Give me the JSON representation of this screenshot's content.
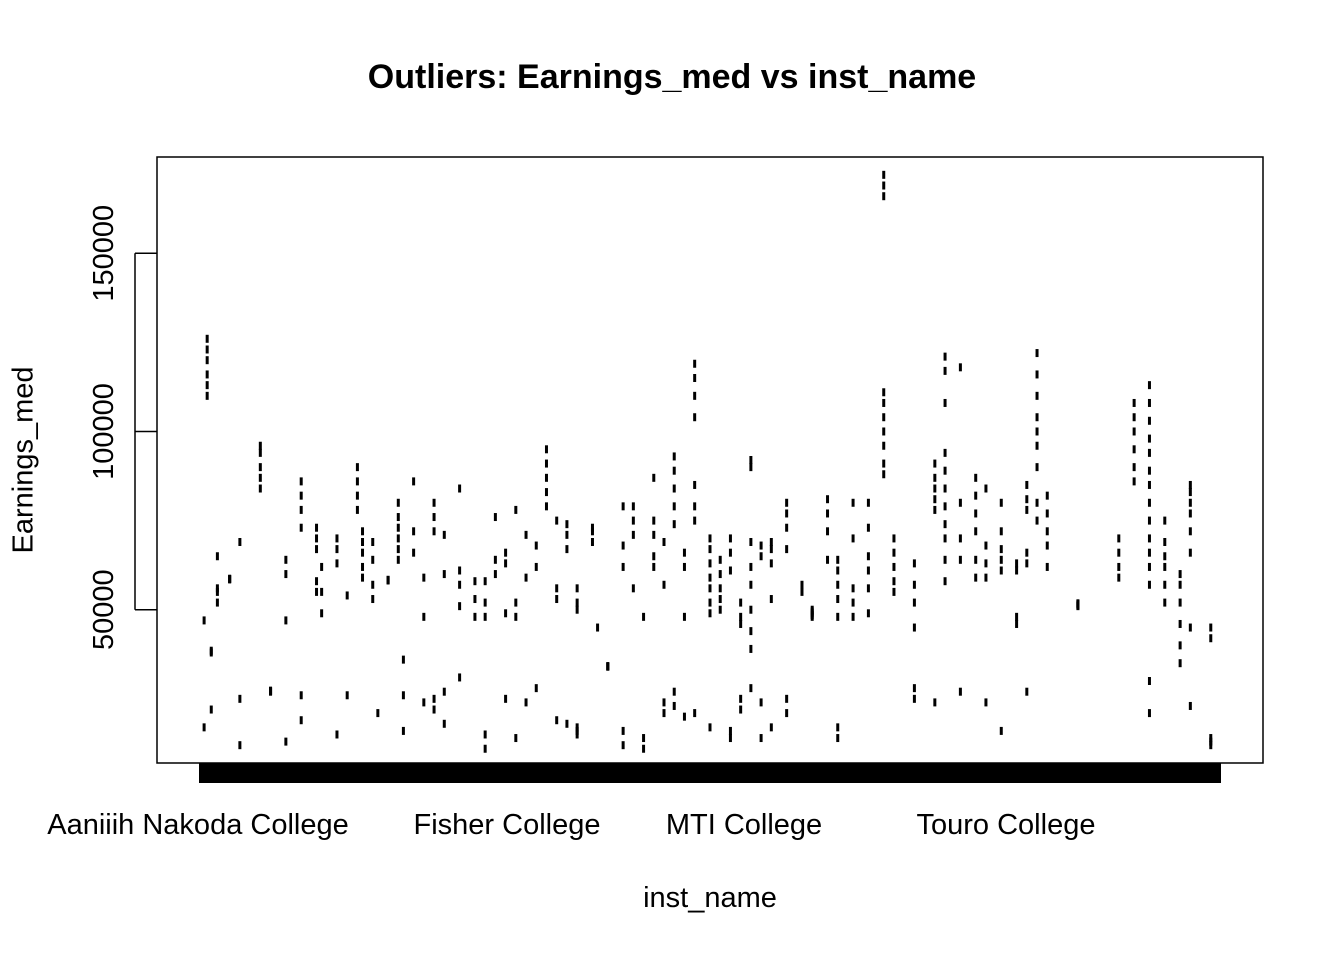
{
  "chart_data": {
    "type": "box",
    "title": "Outliers: Earnings_med vs inst_name",
    "xlabel": "inst_name",
    "ylabel": "Earnings_med",
    "ylim": [
      7000,
      177000
    ],
    "y_ticks": [
      50000,
      100000,
      150000
    ],
    "x_tick_labels": [
      "Aaniiih Nakoda College",
      "Fisher College",
      "MTI College",
      "Touro College"
    ],
    "n_categories": 1000,
    "grid": false,
    "legend": "none",
    "colors": {
      "ink": "#000000",
      "background": "#ffffff"
    },
    "outlier_clusters": [
      {
        "x": 0.005,
        "values": [
          47000,
          17000
        ]
      },
      {
        "x": 0.008,
        "values": [
          110000,
          113000,
          116000,
          120000,
          123000,
          126000
        ]
      },
      {
        "x": 0.012,
        "values": [
          38000,
          38500,
          22000
        ]
      },
      {
        "x": 0.018,
        "values": [
          52000,
          55000,
          65000,
          56000
        ]
      },
      {
        "x": 0.03,
        "values": [
          58500,
          58600,
          58700
        ]
      },
      {
        "x": 0.04,
        "values": [
          69000,
          25000,
          12000
        ]
      },
      {
        "x": 0.06,
        "values": [
          84000,
          87000,
          90000,
          94000,
          96000
        ]
      },
      {
        "x": 0.07,
        "values": [
          27000,
          27100,
          27200,
          27300
        ]
      },
      {
        "x": 0.085,
        "values": [
          64000,
          60000,
          47000,
          13000
        ]
      },
      {
        "x": 0.1,
        "values": [
          73000,
          78000,
          82000,
          86000,
          26000,
          19000
        ]
      },
      {
        "x": 0.115,
        "values": [
          67000,
          70000,
          73000,
          58000,
          55000
        ]
      },
      {
        "x": 0.12,
        "values": [
          62000,
          55000,
          49000
        ]
      },
      {
        "x": 0.135,
        "values": [
          63000,
          67000,
          70000,
          15000
        ]
      },
      {
        "x": 0.145,
        "values": [
          54000,
          26000
        ]
      },
      {
        "x": 0.155,
        "values": [
          78000,
          82000,
          86000,
          90000
        ]
      },
      {
        "x": 0.16,
        "values": [
          59000,
          62000,
          66000,
          69000,
          72000
        ]
      },
      {
        "x": 0.17,
        "values": [
          53000,
          57000,
          64000,
          69000
        ]
      },
      {
        "x": 0.175,
        "values": [
          21000
        ]
      },
      {
        "x": 0.185,
        "values": [
          58200,
          58300,
          58400
        ]
      },
      {
        "x": 0.195,
        "values": [
          64000,
          67000,
          70000,
          73000,
          76000,
          80000
        ]
      },
      {
        "x": 0.2,
        "values": [
          36000,
          16000,
          26000
        ]
      },
      {
        "x": 0.21,
        "values": [
          72000,
          66000,
          86000
        ]
      },
      {
        "x": 0.22,
        "values": [
          59000,
          48000,
          24000
        ]
      },
      {
        "x": 0.23,
        "values": [
          80000,
          76000,
          72000,
          25000,
          22000
        ]
      },
      {
        "x": 0.24,
        "values": [
          71000,
          60000,
          27000,
          18000
        ]
      },
      {
        "x": 0.255,
        "values": [
          51000,
          57000,
          61000,
          84000,
          31000
        ]
      },
      {
        "x": 0.27,
        "values": [
          48000,
          53000,
          58000
        ]
      },
      {
        "x": 0.28,
        "values": [
          48000,
          52000,
          58000,
          15000,
          11000
        ]
      },
      {
        "x": 0.29,
        "values": [
          60000,
          64000,
          76000
        ]
      },
      {
        "x": 0.3,
        "values": [
          63000,
          66000,
          49000,
          25000
        ]
      },
      {
        "x": 0.31,
        "values": [
          48000,
          78000,
          52000,
          14000
        ]
      },
      {
        "x": 0.32,
        "values": [
          59000,
          71000,
          24000
        ]
      },
      {
        "x": 0.33,
        "values": [
          68000,
          62000,
          28000
        ]
      },
      {
        "x": 0.34,
        "values": [
          79000,
          83000,
          87000,
          91000,
          95000
        ]
      },
      {
        "x": 0.35,
        "values": [
          56000,
          75000,
          53000,
          19000
        ]
      },
      {
        "x": 0.36,
        "values": [
          67000,
          71000,
          74000,
          18000
        ]
      },
      {
        "x": 0.37,
        "values": [
          50000,
          52000,
          56000,
          15000,
          16000,
          17000
        ]
      },
      {
        "x": 0.385,
        "values": [
          69000,
          72000,
          73000
        ]
      },
      {
        "x": 0.39,
        "values": [
          45000
        ]
      },
      {
        "x": 0.4,
        "values": [
          34000,
          34100,
          34200
        ]
      },
      {
        "x": 0.415,
        "values": [
          62000,
          68000,
          79000,
          12000,
          16000
        ]
      },
      {
        "x": 0.425,
        "values": [
          56000,
          71000,
          75000,
          79000
        ]
      },
      {
        "x": 0.435,
        "values": [
          48000,
          14000,
          11000
        ]
      },
      {
        "x": 0.445,
        "values": [
          62000,
          65000,
          71000,
          75000,
          87000
        ]
      },
      {
        "x": 0.455,
        "values": [
          57000,
          69000,
          21000,
          24000
        ]
      },
      {
        "x": 0.465,
        "values": [
          74000,
          79000,
          84000,
          89000,
          93000,
          27000,
          23000
        ]
      },
      {
        "x": 0.475,
        "values": [
          62000,
          66000,
          48000,
          20000
        ]
      },
      {
        "x": 0.485,
        "values": [
          75000,
          79000,
          85000,
          104000,
          110000,
          115000,
          119000,
          21000
        ]
      },
      {
        "x": 0.5,
        "values": [
          49000,
          52000,
          56000,
          59000,
          63000,
          67000,
          70000,
          17000
        ]
      },
      {
        "x": 0.51,
        "values": [
          50000,
          53000,
          56000,
          60000,
          64000
        ]
      },
      {
        "x": 0.52,
        "values": [
          61000,
          66000,
          70000,
          14000,
          16000
        ]
      },
      {
        "x": 0.53,
        "values": [
          46000,
          48000,
          52000,
          22000,
          25000
        ]
      },
      {
        "x": 0.54,
        "values": [
          28000,
          39000,
          44000,
          50000,
          57000,
          62000,
          69000,
          90000,
          92000
        ]
      },
      {
        "x": 0.55,
        "values": [
          24000,
          14000,
          65000,
          68000
        ]
      },
      {
        "x": 0.56,
        "values": [
          63000,
          67000,
          69000,
          53000,
          17000
        ]
      },
      {
        "x": 0.575,
        "values": [
          67000,
          73000,
          77000,
          80000,
          21000,
          25000
        ]
      },
      {
        "x": 0.59,
        "values": [
          55000,
          57000
        ]
      },
      {
        "x": 0.6,
        "values": [
          48000,
          48500,
          49000,
          49500,
          50000
        ]
      },
      {
        "x": 0.615,
        "values": [
          64000,
          72000,
          77000,
          81000
        ]
      },
      {
        "x": 0.625,
        "values": [
          48000,
          53000,
          57000,
          61000,
          64000,
          14000,
          17000
        ]
      },
      {
        "x": 0.64,
        "values": [
          48000,
          52000,
          56000,
          70000,
          80000
        ]
      },
      {
        "x": 0.655,
        "values": [
          49000,
          56000,
          61000,
          65000,
          73000,
          80000
        ]
      },
      {
        "x": 0.67,
        "values": [
          88000,
          91000,
          96000,
          100000,
          104000,
          108000,
          111000
        ]
      },
      {
        "x": 0.68,
        "values": [
          55000,
          58000,
          62000,
          66000,
          70000
        ]
      },
      {
        "x": 0.7,
        "values": [
          45000,
          52000,
          57000,
          63000,
          28000,
          25000
        ]
      },
      {
        "x": 0.72,
        "values": [
          78000,
          81000,
          84000,
          87000,
          91000,
          24000
        ]
      },
      {
        "x": 0.73,
        "values": [
          58000,
          64000,
          70000,
          74000,
          79000,
          84000,
          89000,
          94000,
          108000,
          117000,
          121000
        ]
      },
      {
        "x": 0.745,
        "values": [
          64000,
          70000,
          80000,
          118000,
          27000
        ]
      },
      {
        "x": 0.76,
        "values": [
          59000,
          64000,
          72000,
          77000,
          82000,
          87000
        ]
      },
      {
        "x": 0.77,
        "values": [
          59000,
          63000,
          68000,
          84000,
          24000
        ]
      },
      {
        "x": 0.785,
        "values": [
          61000,
          64000,
          67000,
          72000,
          80000,
          16000
        ]
      },
      {
        "x": 0.8,
        "values": [
          61000,
          63000,
          46000,
          48000
        ]
      },
      {
        "x": 0.81,
        "values": [
          63000,
          66000,
          78000,
          81000,
          85000,
          27000
        ]
      },
      {
        "x": 0.82,
        "values": [
          75000,
          80000,
          90000,
          96000,
          100000,
          104000,
          110000,
          116000,
          122000
        ]
      },
      {
        "x": 0.83,
        "values": [
          62000,
          68000,
          72000,
          77000,
          82000
        ]
      },
      {
        "x": 0.86,
        "values": [
          51000,
          51200,
          51400,
          51600,
          51800
        ]
      },
      {
        "x": 0.9,
        "values": [
          59000,
          62000,
          66000,
          70000
        ]
      },
      {
        "x": 0.915,
        "values": [
          86000,
          90000,
          95000,
          100000,
          104000,
          108000
        ]
      },
      {
        "x": 0.93,
        "values": [
          57000,
          62000,
          66000,
          70000,
          75000,
          80000,
          85000,
          89000,
          94000,
          98000,
          103000,
          108000,
          113000,
          30000,
          21000
        ]
      },
      {
        "x": 0.945,
        "values": [
          52000,
          57000,
          62000,
          65000,
          69000,
          75000
        ]
      },
      {
        "x": 0.96,
        "values": [
          35000,
          40000,
          46000,
          52000,
          57000,
          60000
        ]
      },
      {
        "x": 0.97,
        "values": [
          66000,
          72000,
          77000,
          80000,
          83000,
          85000,
          45000,
          23000
        ]
      },
      {
        "x": 0.99,
        "values": [
          12000,
          13000,
          14000,
          45000,
          42000
        ]
      }
    ],
    "highlight_points": [
      {
        "x": 0.67,
        "values": [
          166000,
          169000,
          172000
        ]
      }
    ]
  }
}
